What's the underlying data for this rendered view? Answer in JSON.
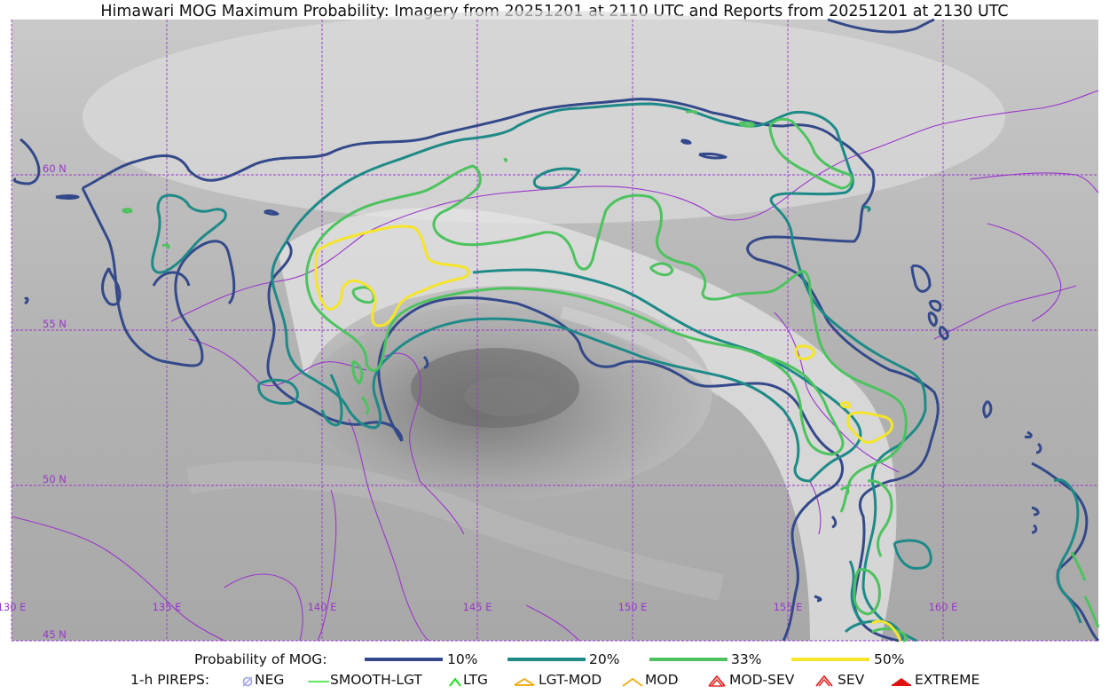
{
  "title": "Himawari MOG Maximum Probability: Imagery from 20251201 at 2110 UTC and Reports from 20251201 at 2130 UTC",
  "map": {
    "lat_labels": [
      "60 N",
      "55 N",
      "50 N",
      "45 N"
    ],
    "lon_labels": [
      "130 E",
      "135 E",
      "140 E",
      "145 E",
      "150 E",
      "155 E",
      "160 E"
    ],
    "grid_color": "#9a35cc",
    "coast_color": "#9a35cc"
  },
  "legend_probability": {
    "title": "Probability of MOG:",
    "items": [
      {
        "label": "10%",
        "color": "#34498a"
      },
      {
        "label": "20%",
        "color": "#1e8a88"
      },
      {
        "label": "33%",
        "color": "#4cc35e"
      },
      {
        "label": "50%",
        "color": "#f5e52a"
      }
    ]
  },
  "legend_pireps": {
    "title": "1-h PIREPS:",
    "items": [
      {
        "label": "NEG",
        "icon": "neg-icon",
        "color": "#a9a9ee"
      },
      {
        "label": "SMOOTH-LGT",
        "icon": "smooth-lgt-icon",
        "color": "#33dd33"
      },
      {
        "label": "LTG",
        "icon": "ltg-icon",
        "color": "#22dd22"
      },
      {
        "label": "LGT-MOD",
        "icon": "lgt-mod-icon",
        "color": "#f0b020"
      },
      {
        "label": "MOD",
        "icon": "mod-icon",
        "color": "#f0b020"
      },
      {
        "label": "MOD-SEV",
        "icon": "mod-sev-icon",
        "color": "#e03030"
      },
      {
        "label": "SEV",
        "icon": "sev-icon",
        "color": "#e03030"
      },
      {
        "label": "EXTREME",
        "icon": "extreme-icon",
        "color": "#e01010"
      }
    ]
  }
}
